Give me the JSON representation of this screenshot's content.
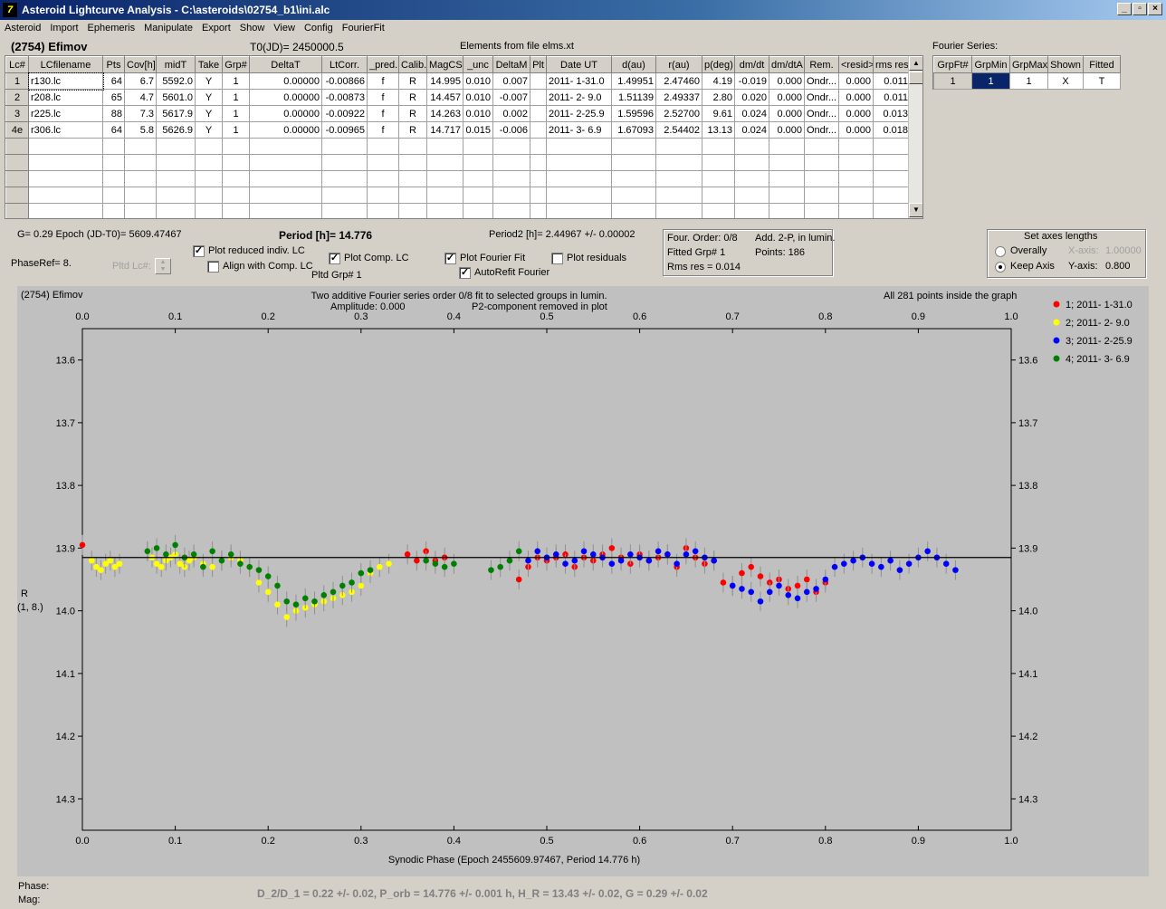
{
  "window": {
    "title": "Asteroid Lightcurve Analysis - C:\\asteroids\\02754_b1\\ini.alc",
    "icon": "app-icon"
  },
  "menu": [
    "Asteroid",
    "Import",
    "Ephemeris",
    "Manipulate",
    "Export",
    "Show",
    "View",
    "Config",
    "FourierFit"
  ],
  "header": {
    "asteroid": "(2754) Efimov",
    "t0": "T0(JD)= 2450000.5",
    "elements": "Elements from file elms.xt"
  },
  "lc_table": {
    "columns": [
      "Lc#",
      "LCfilename",
      "Pts",
      "Cov[h]",
      "midT",
      "Take",
      "Grp#",
      "DeltaT",
      "LtCorr.",
      "_pred.",
      "Calib.",
      "MagCS",
      "_unc",
      "DeltaM",
      "Plt",
      "Date UT",
      "d(au)",
      "r(au)",
      "p(deg)",
      "dm/dt",
      "dm/dtA",
      "Rem.",
      "<resid>",
      "rms res"
    ],
    "rows": [
      [
        "1",
        "r130.lc",
        "64",
        "6.7",
        "5592.0",
        "Y",
        "1",
        "0.00000",
        "-0.00866",
        "f",
        "R",
        "14.995",
        "0.010",
        "0.007",
        "",
        "2011- 1-31.0",
        "1.49951",
        "2.47460",
        "4.19",
        "-0.019",
        "0.000",
        "Ondr...",
        "0.000",
        "0.011"
      ],
      [
        "2",
        "r208.lc",
        "65",
        "4.7",
        "5601.0",
        "Y",
        "1",
        "0.00000",
        "-0.00873",
        "f",
        "R",
        "14.457",
        "0.010",
        "-0.007",
        "",
        "2011- 2- 9.0",
        "1.51139",
        "2.49337",
        "2.80",
        "0.020",
        "0.000",
        "Ondr...",
        "0.000",
        "0.011"
      ],
      [
        "3",
        "r225.lc",
        "88",
        "7.3",
        "5617.9",
        "Y",
        "1",
        "0.00000",
        "-0.00922",
        "f",
        "R",
        "14.263",
        "0.010",
        "0.002",
        "",
        "2011- 2-25.9",
        "1.59596",
        "2.52700",
        "9.61",
        "0.024",
        "0.000",
        "Ondr...",
        "0.000",
        "0.013"
      ],
      [
        "4e",
        "r306.lc",
        "64",
        "5.8",
        "5626.9",
        "Y",
        "1",
        "0.00000",
        "-0.00965",
        "f",
        "R",
        "14.717",
        "0.015",
        "-0.006",
        "",
        "2011- 3- 6.9",
        "1.67093",
        "2.54402",
        "13.13",
        "0.024",
        "0.000",
        "Ondr...",
        "0.000",
        "0.018"
      ]
    ]
  },
  "fourier_series": {
    "title": "Fourier Series:",
    "columns": [
      "GrpFt#",
      "GrpMin",
      "GrpMax",
      "Shown",
      "Fitted"
    ],
    "row": [
      "1",
      "1",
      "1",
      "X",
      "T"
    ]
  },
  "info": {
    "g_epoch": "G= 0.29   Epoch (JD-T0)= 5609.47467",
    "period": "Period [h]= 14.776",
    "period2": "Period2 [h]= 2.44967 +/- 0.00002",
    "phaseref": "PhaseRef= 8.",
    "pltd_lc": "Pltd Lc#:",
    "pltd_grp": "Pltd Grp#  1"
  },
  "checkboxes": {
    "plot_reduced": {
      "label": "Plot reduced indiv. LC",
      "checked": true
    },
    "align_comp": {
      "label": "Align with Comp. LC",
      "checked": false
    },
    "plot_comp": {
      "label": "Plot Comp. LC",
      "checked": true
    },
    "plot_fourier": {
      "label": "Plot Fourier Fit",
      "checked": true
    },
    "autorefit": {
      "label": "AutoRefit Fourier",
      "checked": true
    },
    "plot_residuals": {
      "label": "Plot residuals",
      "checked": false
    }
  },
  "fit_box": {
    "order": "Four. Order:  0/8",
    "add": "Add. 2-P, in lumin.",
    "fitted": "Fitted Grp# 1",
    "points": "Points: 186",
    "rms": "Rms res     = 0.014"
  },
  "axes_box": {
    "title": "Set axes lengths",
    "overally": "Overally",
    "keep": "Keep Axis",
    "xaxis_label": "X-axis:",
    "xaxis_value": "1.00000",
    "yaxis_label": "Y-axis:",
    "yaxis_value": "0.800",
    "selected": "keep"
  },
  "plot": {
    "name": "(2754) Efimov",
    "subtitle1": "Two additive Fourier series order 0/8 fit to selected groups in lumin.",
    "subtitle2": "Amplitude: 0.000",
    "subtitle3": "P2-component removed in plot",
    "inside": "All 281 points inside the graph",
    "xlabel": "Synodic Phase (Epoch 2455609.97467, Period 14.776 h)",
    "ylabel1": "R",
    "ylabel2": "(1, 8.)",
    "fit_line": 13.915
  },
  "chart_data": {
    "type": "scatter",
    "xlim": [
      0.0,
      1.0
    ],
    "ylim": [
      14.35,
      13.55
    ],
    "y_inverted": true,
    "xticks": [
      "0.0",
      "0.1",
      "0.2",
      "0.3",
      "0.4",
      "0.5",
      "0.6",
      "0.7",
      "0.8",
      "0.9",
      "1.0"
    ],
    "yticks": [
      "13.6",
      "13.7",
      "13.8",
      "13.9",
      "14.0",
      "14.1",
      "14.2",
      "14.3"
    ],
    "series": [
      {
        "name": "1; 2011- 1-31.0",
        "color": "#ff0000",
        "x": [
          0.0,
          0.35,
          0.36,
          0.37,
          0.38,
          0.39,
          0.47,
          0.48,
          0.49,
          0.5,
          0.51,
          0.52,
          0.53,
          0.54,
          0.55,
          0.56,
          0.57,
          0.58,
          0.59,
          0.6,
          0.61,
          0.62,
          0.63,
          0.64,
          0.65,
          0.66,
          0.67,
          0.68,
          0.69,
          0.7,
          0.71,
          0.72,
          0.73,
          0.74,
          0.75,
          0.76,
          0.77,
          0.78,
          0.79,
          0.8
        ],
        "y": [
          13.895,
          13.91,
          13.92,
          13.905,
          13.92,
          13.915,
          13.95,
          13.93,
          13.915,
          13.92,
          13.915,
          13.91,
          13.93,
          13.915,
          13.92,
          13.91,
          13.9,
          13.915,
          13.925,
          13.91,
          13.92,
          13.915,
          13.91,
          13.93,
          13.9,
          13.915,
          13.925,
          13.92,
          13.955,
          13.96,
          13.94,
          13.93,
          13.945,
          13.955,
          13.95,
          13.965,
          13.96,
          13.95,
          13.97,
          13.955
        ]
      },
      {
        "name": "2; 2011- 2- 9.0",
        "color": "#ffff00",
        "x": [
          0.01,
          0.015,
          0.02,
          0.025,
          0.03,
          0.035,
          0.04,
          0.07,
          0.075,
          0.08,
          0.085,
          0.09,
          0.095,
          0.1,
          0.105,
          0.11,
          0.115,
          0.12,
          0.13,
          0.14,
          0.15,
          0.16,
          0.17,
          0.18,
          0.19,
          0.2,
          0.21,
          0.22,
          0.23,
          0.24,
          0.25,
          0.26,
          0.27,
          0.28,
          0.29,
          0.3,
          0.31,
          0.32,
          0.33
        ],
        "y": [
          13.92,
          13.93,
          13.935,
          13.925,
          13.92,
          13.93,
          13.925,
          13.905,
          13.915,
          13.925,
          13.93,
          13.92,
          13.915,
          13.91,
          13.925,
          13.93,
          13.92,
          13.915,
          13.925,
          13.93,
          13.92,
          13.915,
          13.92,
          13.93,
          13.955,
          13.97,
          13.99,
          14.01,
          14.0,
          13.995,
          13.99,
          13.985,
          13.98,
          13.975,
          13.97,
          13.96,
          13.94,
          13.93,
          13.925
        ]
      },
      {
        "name": "3; 2011- 2-25.9",
        "color": "#0000ff",
        "x": [
          0.48,
          0.49,
          0.5,
          0.51,
          0.52,
          0.53,
          0.54,
          0.55,
          0.56,
          0.57,
          0.58,
          0.59,
          0.6,
          0.61,
          0.62,
          0.63,
          0.64,
          0.65,
          0.66,
          0.67,
          0.68,
          0.7,
          0.71,
          0.72,
          0.73,
          0.74,
          0.75,
          0.76,
          0.77,
          0.78,
          0.79,
          0.8,
          0.81,
          0.82,
          0.83,
          0.84,
          0.85,
          0.86,
          0.87,
          0.88,
          0.89,
          0.9,
          0.91,
          0.92,
          0.93,
          0.94
        ],
        "y": [
          13.92,
          13.905,
          13.915,
          13.91,
          13.925,
          13.92,
          13.905,
          13.91,
          13.915,
          13.925,
          13.92,
          13.91,
          13.915,
          13.92,
          13.905,
          13.91,
          13.925,
          13.91,
          13.905,
          13.915,
          13.92,
          13.96,
          13.965,
          13.97,
          13.985,
          13.97,
          13.96,
          13.975,
          13.98,
          13.97,
          13.965,
          13.95,
          13.93,
          13.925,
          13.92,
          13.915,
          13.925,
          13.93,
          13.92,
          13.935,
          13.925,
          13.915,
          13.905,
          13.915,
          13.925,
          13.935
        ]
      },
      {
        "name": "4; 2011- 3- 6.9",
        "color": "#008000",
        "x": [
          0.07,
          0.08,
          0.09,
          0.1,
          0.11,
          0.12,
          0.13,
          0.14,
          0.15,
          0.16,
          0.17,
          0.18,
          0.19,
          0.2,
          0.21,
          0.22,
          0.23,
          0.24,
          0.25,
          0.26,
          0.27,
          0.28,
          0.29,
          0.3,
          0.31,
          0.37,
          0.38,
          0.39,
          0.4,
          0.44,
          0.45,
          0.46,
          0.47
        ],
        "y": [
          13.905,
          13.9,
          13.91,
          13.895,
          13.915,
          13.91,
          13.93,
          13.905,
          13.92,
          13.91,
          13.925,
          13.93,
          13.935,
          13.945,
          13.96,
          13.985,
          13.99,
          13.98,
          13.985,
          13.975,
          13.97,
          13.96,
          13.955,
          13.94,
          13.935,
          13.92,
          13.925,
          13.93,
          13.925,
          13.935,
          13.93,
          13.92,
          13.905
        ]
      }
    ]
  },
  "bottom": {
    "phase": "Phase:",
    "mag": "Mag:",
    "result": "D_2/D_1 = 0.22 +/- 0.02, P_orb = 14.776 +/- 0.001 h, H_R = 13.43 +/- 0.02, G = 0.29 +/- 0.02"
  }
}
